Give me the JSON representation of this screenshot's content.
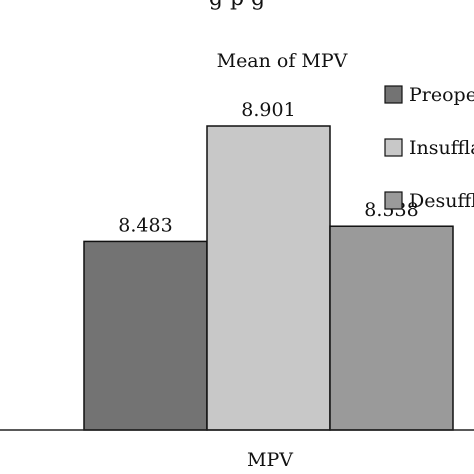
{
  "header": {
    "cut_text": "g          p g"
  },
  "chart_data": {
    "type": "bar",
    "title": "Mean of MPV",
    "xlabel": "MPV",
    "ylabel": "",
    "categories": [
      "MPV"
    ],
    "series": [
      {
        "name": "Preope",
        "values": [
          8.483
        ],
        "value_label": "8.483",
        "color": "#737373"
      },
      {
        "name": "Insuffla",
        "values": [
          8.901
        ],
        "value_label": "8.901",
        "color": "#c8c8c8"
      },
      {
        "name": "Desuffl",
        "values": [
          8.538
        ],
        "value_label": "8.538",
        "color": "#9a9a9a"
      }
    ],
    "ylim": [
      8.0,
      9.0
    ],
    "grid": false,
    "legend_position": "right"
  }
}
